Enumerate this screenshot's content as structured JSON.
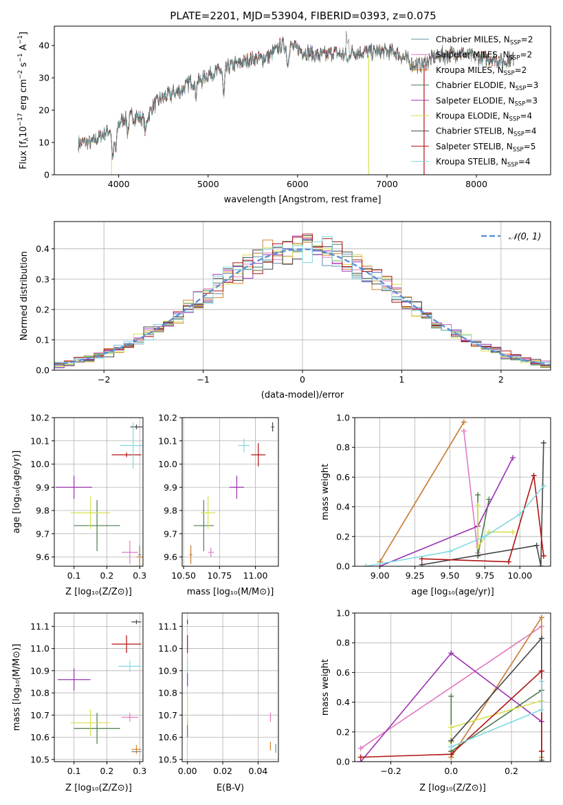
{
  "title": "PLATE=2201, MJD=53904, FIBERID=0393, z=0.075",
  "colors": {
    "Chabrier MILES": "#5b8fa8",
    "Salpeter MILES": "#e377c2",
    "Kroupa MILES": "#d4812e",
    "Chabrier ELODIE": "#4e7a4e",
    "Salpeter ELODIE": "#9b30b0",
    "Kroupa ELODIE": "#d6e04a",
    "Chabrier STELIB": "#444444",
    "Salpeter STELIB": "#b01010",
    "Kroupa STELIB": "#7fd8e0",
    "gauss": "#5b8fd6",
    "grid": "#b0b0b0"
  },
  "chart_data": [
    {
      "id": "spectrum",
      "type": "line",
      "xlabel": "wavelength [Angstrom, rest frame]",
      "ylabel": "Flux [f",
      "xlim": [
        3280,
        8830
      ],
      "ylim": [
        0,
        46
      ],
      "xticks": [
        4000,
        5000,
        6000,
        7000,
        8000
      ],
      "yticks": [
        0,
        10,
        20,
        30,
        40
      ],
      "continuum": [
        [
          3550,
          10
        ],
        [
          3700,
          10
        ],
        [
          3800,
          12
        ],
        [
          3900,
          14
        ],
        [
          3950,
          12
        ],
        [
          4000,
          16
        ],
        [
          4100,
          18
        ],
        [
          4200,
          18
        ],
        [
          4300,
          17
        ],
        [
          4400,
          22
        ],
        [
          4500,
          24
        ],
        [
          4600,
          25
        ],
        [
          4700,
          26
        ],
        [
          4800,
          29
        ],
        [
          4900,
          29
        ],
        [
          5000,
          31
        ],
        [
          5100,
          32
        ],
        [
          5200,
          33
        ],
        [
          5300,
          34
        ],
        [
          5400,
          35
        ],
        [
          5500,
          36
        ],
        [
          5600,
          36
        ],
        [
          5700,
          37
        ],
        [
          5800,
          40
        ],
        [
          5900,
          40
        ],
        [
          6000,
          39
        ],
        [
          6100,
          38
        ],
        [
          6200,
          37
        ],
        [
          6300,
          37
        ],
        [
          6400,
          38
        ],
        [
          6500,
          37
        ],
        [
          6600,
          38
        ],
        [
          6700,
          38
        ],
        [
          6800,
          38
        ],
        [
          6900,
          38
        ],
        [
          7000,
          38
        ],
        [
          7100,
          38
        ],
        [
          7200,
          36
        ],
        [
          7300,
          34
        ],
        [
          7400,
          34
        ],
        [
          7500,
          36
        ],
        [
          7600,
          37
        ],
        [
          7700,
          37
        ],
        [
          7800,
          38
        ],
        [
          7900,
          37
        ],
        [
          8000,
          36
        ],
        [
          8100,
          36
        ],
        [
          8200,
          36
        ],
        [
          8300,
          35
        ],
        [
          8420,
          36
        ]
      ],
      "legend": [
        {
          "name": "Chabrier MILES, N",
          "n": "2"
        },
        {
          "name": "Salpeter MILES, N",
          "n": "2"
        },
        {
          "name": "Kroupa MILES, N",
          "n": "2"
        },
        {
          "name": "Chabrier ELODIE, N",
          "n": "3"
        },
        {
          "name": "Salpeter ELODIE, N",
          "n": "3"
        },
        {
          "name": "Kroupa ELODIE, N",
          "n": "4"
        },
        {
          "name": "Chabrier STELIB, N",
          "n": "4"
        },
        {
          "name": "Salpeter STELIB, N",
          "n": "5"
        },
        {
          "name": "Kroupa STELIB, N",
          "n": "4"
        }
      ]
    },
    {
      "id": "residuals",
      "type": "area",
      "xlabel": "(data-model)/error",
      "ylabel": "Normed distribution",
      "xlim": [
        -2.5,
        2.5
      ],
      "ylim": [
        0,
        0.49
      ],
      "xticks": [
        -2,
        -1,
        0,
        1,
        2
      ],
      "yticks": [
        0.0,
        0.1,
        0.2,
        0.3,
        0.4
      ],
      "legend": "𝒩(0, 1)",
      "bins": 50
    },
    {
      "id": "age_Z",
      "type": "scatter",
      "xlabel": "Z [log₁₀(Z/Z⊙)]",
      "ylabel": "age  [log₁₀(age/yr)]",
      "xlim": [
        0.04,
        0.31
      ],
      "ylim": [
        9.56,
        10.2
      ],
      "xticks": [
        0.1,
        0.2,
        0.3
      ],
      "yticks": [
        9.6,
        9.7,
        9.8,
        9.9,
        10.0,
        10.1,
        10.2
      ],
      "points": [
        {
          "s": "Chabrier MILES",
          "x": 0.3,
          "y": 9.61,
          "ex": 0.005,
          "ey": 0.04
        },
        {
          "s": "Salpeter MILES",
          "x": 0.27,
          "y": 9.62,
          "ex": 0.025,
          "ey": 0.05
        },
        {
          "s": "Kroupa MILES",
          "x": 0.3,
          "y": 9.6,
          "ex": 0.01,
          "ey": 0.04
        },
        {
          "s": "Chabrier ELODIE",
          "x": 0.17,
          "y": 9.735,
          "ex": 0.07,
          "ey": 0.11
        },
        {
          "s": "Salpeter ELODIE",
          "x": 0.1,
          "y": 9.9,
          "ex": 0.055,
          "ey": 0.05
        },
        {
          "s": "Kroupa ELODIE",
          "x": 0.15,
          "y": 9.79,
          "ex": 0.06,
          "ey": 0.07
        },
        {
          "s": "Chabrier STELIB",
          "x": 0.29,
          "y": 10.16,
          "ex": 0.018,
          "ey": 0.01
        },
        {
          "s": "Salpeter STELIB",
          "x": 0.26,
          "y": 10.04,
          "ex": 0.045,
          "ey": 0.01
        },
        {
          "s": "Kroupa STELIB",
          "x": 0.28,
          "y": 10.08,
          "ex": 0.04,
          "ey": 0.1
        }
      ]
    },
    {
      "id": "age_mass",
      "type": "scatter",
      "xlabel": "mass [log₁₀(M/M⊙)]",
      "ylabel": "",
      "xlim": [
        10.49,
        11.16
      ],
      "ylim": [
        9.56,
        10.2
      ],
      "xticks": [
        10.5,
        10.75,
        11.0
      ],
      "yticks": [
        9.6,
        9.7,
        9.8,
        9.9,
        10.0,
        10.1,
        10.2
      ],
      "points": [
        {
          "s": "Chabrier MILES",
          "x": 10.55,
          "y": 9.61,
          "ex": 0.01,
          "ey": 0.04
        },
        {
          "s": "Salpeter MILES",
          "x": 10.69,
          "y": 9.62,
          "ex": 0.02,
          "ey": 0.02
        },
        {
          "s": "Kroupa MILES",
          "x": 10.55,
          "y": 9.61,
          "ex": 0.01,
          "ey": 0.04
        },
        {
          "s": "Chabrier ELODIE",
          "x": 10.64,
          "y": 9.735,
          "ex": 0.07,
          "ey": 0.11
        },
        {
          "s": "Salpeter ELODIE",
          "x": 10.87,
          "y": 9.9,
          "ex": 0.05,
          "ey": 0.05
        },
        {
          "s": "Kroupa ELODIE",
          "x": 10.67,
          "y": 9.79,
          "ex": 0.05,
          "ey": 0.07
        },
        {
          "s": "Chabrier STELIB",
          "x": 11.12,
          "y": 10.16,
          "ex": 0.01,
          "ey": 0.02
        },
        {
          "s": "Salpeter STELIB",
          "x": 11.02,
          "y": 10.04,
          "ex": 0.05,
          "ey": 0.05
        },
        {
          "s": "Kroupa STELIB",
          "x": 10.92,
          "y": 10.08,
          "ex": 0.04,
          "ey": 0.03
        }
      ]
    },
    {
      "id": "weight_age",
      "type": "line",
      "xlabel": "age  [log₁₀(age/yr)]",
      "ylabel": "mass weight",
      "xlim": [
        8.82,
        10.22
      ],
      "ylim": [
        0,
        1.0
      ],
      "xticks": [
        9.0,
        9.25,
        9.5,
        9.75,
        10.0
      ],
      "yticks": [
        0.0,
        0.2,
        0.4,
        0.6,
        0.8,
        1.0
      ],
      "series": [
        {
          "s": "Chabrier MILES",
          "x": [
            9.0,
            9.6
          ],
          "y": [
            0.03,
            0.97
          ]
        },
        {
          "s": "Salpeter MILES",
          "x": [
            9.6,
            9.7
          ],
          "y": [
            0.91,
            0.09
          ]
        },
        {
          "s": "Kroupa MILES",
          "x": [
            9.0,
            9.6
          ],
          "y": [
            0.03,
            0.97
          ]
        },
        {
          "s": "Chabrier ELODIE",
          "x": [
            9.7,
            9.7,
            9.78,
            9.7
          ],
          "y": [
            0.48,
            0.07,
            0.45,
            0.07
          ]
        },
        {
          "s": "Salpeter ELODIE",
          "x": [
            9.0,
            9.7,
            9.95
          ],
          "y": [
            0.0,
            0.27,
            0.73
          ]
        },
        {
          "s": "Kroupa ELODIE",
          "x": [
            9.7,
            9.7,
            9.78,
            9.95
          ],
          "y": [
            0.41,
            0.13,
            0.23,
            0.23
          ]
        },
        {
          "s": "Chabrier STELIB",
          "x": [
            9.3,
            10.12,
            10.15,
            10.17
          ],
          "y": [
            0.01,
            0.14,
            0.0,
            0.83
          ]
        },
        {
          "s": "Salpeter STELIB",
          "x": [
            9.3,
            9.92,
            10.1,
            10.17
          ],
          "y": [
            0.05,
            0.03,
            0.61,
            0.07
          ]
        },
        {
          "s": "Kroupa STELIB",
          "x": [
            8.9,
            9.5,
            9.75,
            10.0,
            10.17
          ],
          "y": [
            0.0,
            0.1,
            0.2,
            0.35,
            0.54
          ]
        }
      ]
    },
    {
      "id": "mass_Z",
      "type": "scatter",
      "xlabel": "Z [log₁₀(Z/Z⊙)]",
      "ylabel": "mass [log₁₀(M/M⊙)]",
      "xlim": [
        0.04,
        0.31
      ],
      "ylim": [
        10.49,
        11.16
      ],
      "xticks": [
        0.1,
        0.2,
        0.3
      ],
      "yticks": [
        10.5,
        10.6,
        10.7,
        10.8,
        10.9,
        11.0,
        11.1
      ],
      "points": [
        {
          "s": "Chabrier MILES",
          "x": 0.29,
          "y": 10.535,
          "ex": 0.015,
          "ey": 0.005
        },
        {
          "s": "Salpeter MILES",
          "x": 0.27,
          "y": 10.69,
          "ex": 0.025,
          "ey": 0.02
        },
        {
          "s": "Kroupa MILES",
          "x": 0.29,
          "y": 10.545,
          "ex": 0.015,
          "ey": 0.02
        },
        {
          "s": "Chabrier ELODIE",
          "x": 0.17,
          "y": 10.64,
          "ex": 0.07,
          "ey": 0.07
        },
        {
          "s": "Salpeter ELODIE",
          "x": 0.1,
          "y": 10.86,
          "ex": 0.05,
          "ey": 0.05
        },
        {
          "s": "Kroupa ELODIE",
          "x": 0.15,
          "y": 10.665,
          "ex": 0.06,
          "ey": 0.06
        },
        {
          "s": "Chabrier STELIB",
          "x": 0.29,
          "y": 11.12,
          "ex": 0.015,
          "ey": 0.01
        },
        {
          "s": "Salpeter STELIB",
          "x": 0.26,
          "y": 11.02,
          "ex": 0.045,
          "ey": 0.04
        },
        {
          "s": "Kroupa STELIB",
          "x": 0.27,
          "y": 10.92,
          "ex": 0.035,
          "ey": 0.025
        }
      ]
    },
    {
      "id": "mass_ebv",
      "type": "scatter",
      "xlabel": "E(B-V)",
      "ylabel": "",
      "xlim": [
        -0.003,
        0.0515
      ],
      "ylim": [
        10.49,
        11.16
      ],
      "xticks": [
        0.0,
        0.02,
        0.04
      ],
      "yticks": [
        10.5,
        10.6,
        10.7,
        10.8,
        10.9,
        11.0,
        11.1
      ],
      "points": [
        {
          "s": "Chabrier MILES",
          "x": 0.05,
          "y": 10.55,
          "ex": 0.0,
          "ey": 0.02
        },
        {
          "s": "Salpeter MILES",
          "x": 0.047,
          "y": 10.69,
          "ex": 0.0,
          "ey": 0.02
        },
        {
          "s": "Kroupa MILES",
          "x": 0.047,
          "y": 10.56,
          "ex": 0.0,
          "ey": 0.02
        },
        {
          "s": "Chabrier ELODIE",
          "x": 0.0,
          "y": 10.64,
          "ex": 0.0,
          "ey": 0.04
        },
        {
          "s": "Salpeter ELODIE",
          "x": 0.0,
          "y": 10.86,
          "ex": 0.0,
          "ey": 0.03
        },
        {
          "s": "Kroupa ELODIE",
          "x": 0.0,
          "y": 10.715,
          "ex": 0.0,
          "ey": 0.06
        },
        {
          "s": "Chabrier STELIB",
          "x": 0.0,
          "y": 11.12,
          "ex": 0.0,
          "ey": 0.01
        },
        {
          "s": "Salpeter STELIB",
          "x": 0.0,
          "y": 11.02,
          "ex": 0.0,
          "ey": 0.04
        },
        {
          "s": "Kroupa STELIB",
          "x": 0.0,
          "y": 10.92,
          "ex": 0.0,
          "ey": 0.03
        }
      ]
    },
    {
      "id": "weight_Z",
      "type": "line",
      "xlabel": "Z [log₁₀(Z/Z⊙)]",
      "ylabel": "mass weight",
      "xlim": [
        -0.32,
        0.33
      ],
      "ylim": [
        0,
        1.0
      ],
      "xticks": [
        -0.2,
        0.0,
        0.2
      ],
      "yticks": [
        0.0,
        0.2,
        0.4,
        0.6,
        0.8,
        1.0
      ],
      "series": [
        {
          "s": "Chabrier MILES",
          "x": [
            0.0,
            0.3
          ],
          "y": [
            0.03,
            0.97
          ]
        },
        {
          "s": "Salpeter MILES",
          "x": [
            -0.3,
            0.3
          ],
          "y": [
            0.09,
            0.91
          ]
        },
        {
          "s": "Kroupa MILES",
          "x": [
            0.0,
            0.3,
            0.3
          ],
          "y": [
            0.03,
            0.97,
            0.03
          ]
        },
        {
          "s": "Chabrier ELODIE",
          "x": [
            0.0,
            0.0,
            0.0,
            0.3,
            0.3
          ],
          "y": [
            0.44,
            0.07,
            0.07,
            0.48,
            0.01
          ]
        },
        {
          "s": "Salpeter ELODIE",
          "x": [
            -0.3,
            0.0,
            0.3
          ],
          "y": [
            0.0,
            0.73,
            0.27
          ]
        },
        {
          "s": "Kroupa ELODIE",
          "x": [
            0.0,
            0.0,
            0.0,
            0.3
          ],
          "y": [
            0.13,
            0.23,
            0.23,
            0.41
          ]
        },
        {
          "s": "Chabrier STELIB",
          "x": [
            0.0,
            0.3,
            0.3
          ],
          "y": [
            0.14,
            0.83,
            0.0
          ]
        },
        {
          "s": "Salpeter STELIB",
          "x": [
            -0.3,
            0.0,
            0.3,
            0.3
          ],
          "y": [
            0.03,
            0.05,
            0.61,
            0.07
          ]
        },
        {
          "s": "Kroupa STELIB",
          "x": [
            0.0,
            0.0,
            0.3,
            0.3
          ],
          "y": [
            0.1,
            0.1,
            0.35,
            0.54
          ]
        }
      ]
    }
  ]
}
